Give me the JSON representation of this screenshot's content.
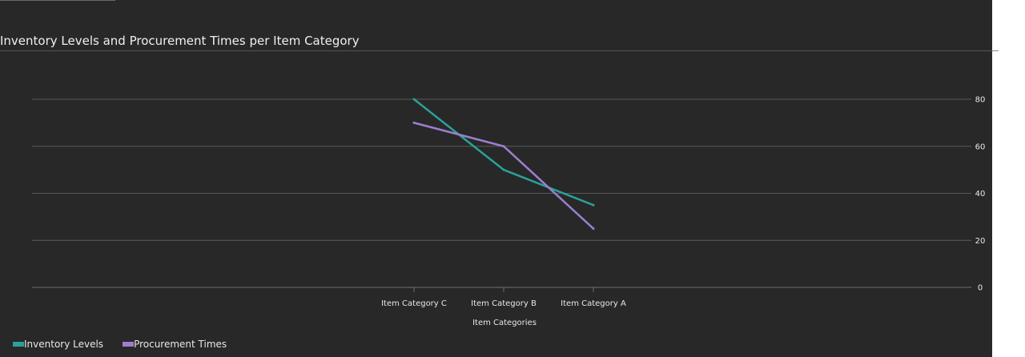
{
  "chart_data": {
    "type": "line",
    "title": "Inventory Levels and Procurement Times per Item Category",
    "xlabel": "Item Categories",
    "ylabel": "",
    "categories": [
      "Item Category C",
      "Item Category B",
      "Item Category A"
    ],
    "series": [
      {
        "name": "Inventory Levels",
        "values": [
          80,
          50,
          35
        ],
        "color": "#2aa198"
      },
      {
        "name": "Procurement Times",
        "values": [
          70,
          60,
          25
        ],
        "color": "#9b7fcf"
      }
    ],
    "ylim": [
      0,
      80
    ],
    "yticks": [
      0,
      20,
      40,
      60,
      80
    ],
    "grid": true,
    "y_axis_position": "right",
    "legend_position": "bottom-left"
  }
}
